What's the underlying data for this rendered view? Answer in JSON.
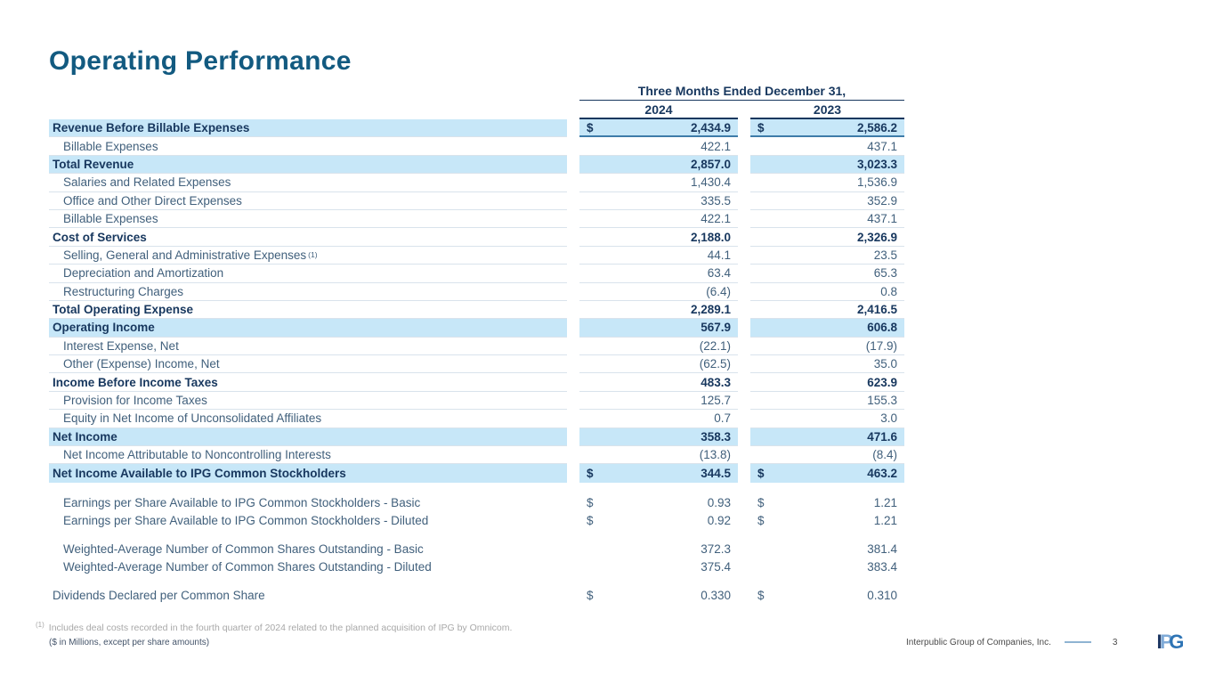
{
  "title": "Operating Performance",
  "table": {
    "period_header": "Three Months Ended December 31,",
    "years": [
      "2024",
      "2023"
    ],
    "rows": [
      {
        "label": "Revenue Before Billable Expenses",
        "style": "hl",
        "dollar": true,
        "v1": "2,434.9",
        "v2": "2,586.2"
      },
      {
        "label": "Billable Expenses",
        "style": "reg",
        "dollar": false,
        "v1": "422.1",
        "v2": "437.1"
      },
      {
        "label": "Total Revenue",
        "style": "hl",
        "dollar": false,
        "v1": "2,857.0",
        "v2": "3,023.3"
      },
      {
        "label": "Salaries and Related Expenses",
        "style": "reg",
        "dollar": false,
        "v1": "1,430.4",
        "v2": "1,536.9"
      },
      {
        "label": "Office and Other Direct Expenses",
        "style": "reg",
        "dollar": false,
        "v1": "335.5",
        "v2": "352.9"
      },
      {
        "label": "Billable Expenses",
        "style": "reg",
        "dollar": false,
        "v1": "422.1",
        "v2": "437.1"
      },
      {
        "label": "Cost of Services",
        "style": "bold",
        "dollar": false,
        "v1": "2,188.0",
        "v2": "2,326.9"
      },
      {
        "label": "Selling, General and Administrative Expenses",
        "sup": "(1)",
        "style": "reg",
        "dollar": false,
        "v1": "44.1",
        "v2": "23.5"
      },
      {
        "label": "Depreciation and Amortization",
        "style": "reg",
        "dollar": false,
        "v1": "63.4",
        "v2": "65.3"
      },
      {
        "label": "Restructuring Charges",
        "style": "reg",
        "dollar": false,
        "v1": "(6.4)",
        "v2": "0.8"
      },
      {
        "label": "Total Operating Expense",
        "style": "bold",
        "dollar": false,
        "v1": "2,289.1",
        "v2": "2,416.5"
      },
      {
        "label": "Operating Income",
        "style": "hl",
        "dollar": false,
        "v1": "567.9",
        "v2": "606.8"
      },
      {
        "label": "Interest Expense, Net",
        "style": "reg",
        "dollar": false,
        "v1": "(22.1)",
        "v2": "(17.9)"
      },
      {
        "label": "Other (Expense) Income, Net",
        "style": "reg",
        "dollar": false,
        "v1": "(62.5)",
        "v2": "35.0"
      },
      {
        "label": "Income Before Income Taxes",
        "style": "bold",
        "dollar": false,
        "v1": "483.3",
        "v2": "623.9"
      },
      {
        "label": "Provision for Income Taxes",
        "style": "reg",
        "dollar": false,
        "v1": "125.7",
        "v2": "155.3"
      },
      {
        "label": "Equity in Net Income of Unconsolidated Affiliates",
        "style": "reg",
        "dollar": false,
        "v1": "0.7",
        "v2": "3.0"
      },
      {
        "label": "Net Income",
        "style": "hl",
        "dollar": false,
        "v1": "358.3",
        "v2": "471.6"
      },
      {
        "label": "Net Income Attributable to Noncontrolling Interests",
        "style": "reg",
        "dollar": false,
        "v1": "(13.8)",
        "v2": "(8.4)"
      },
      {
        "label": "Net Income Available to IPG Common Stockholders",
        "style": "hl",
        "dollar": true,
        "v1": "344.5",
        "v2": "463.2"
      }
    ],
    "bottom_rows": [
      {
        "label": "Earnings per Share Available to IPG Common Stockholders - Basic",
        "indent": true,
        "dollar": true,
        "v1": "0.93",
        "v2": "1.21",
        "gap_before": false
      },
      {
        "label": "Earnings per Share Available to IPG Common Stockholders - Diluted",
        "indent": true,
        "dollar": true,
        "v1": "0.92",
        "v2": "1.21",
        "gap_before": false
      },
      {
        "label": "Weighted-Average Number of Common Shares Outstanding - Basic",
        "indent": true,
        "dollar": false,
        "v1": "372.3",
        "v2": "381.4",
        "gap_before": true
      },
      {
        "label": "Weighted-Average Number of Common Shares Outstanding - Diluted",
        "indent": true,
        "dollar": false,
        "v1": "375.4",
        "v2": "383.4",
        "gap_before": false
      },
      {
        "label": "Dividends Declared per Common Share",
        "indent": false,
        "dollar": true,
        "v1": "0.330",
        "v2": "0.310",
        "gap_before": true
      }
    ]
  },
  "footnote": {
    "marker": "(1)",
    "text": "Includes deal costs recorded in the fourth quarter of 2024 related to the planned acquisition of IPG by Omnicom.",
    "units": "($ in Millions, except per share amounts)"
  },
  "footer": {
    "company": "Interpublic Group of Companies, Inc.",
    "page_number": "3",
    "logo_letters": [
      "I",
      "P",
      "G"
    ]
  },
  "colors": {
    "title_blue": "#125A80",
    "table_navy": "#17375E",
    "row_slate": "#41607C",
    "highlight_blue": "#C7E7F8",
    "separator": "#D9E3EC",
    "logo_i": "#1F3864",
    "logo_p": "#7FAAD7",
    "logo_g": "#2E74B5"
  }
}
